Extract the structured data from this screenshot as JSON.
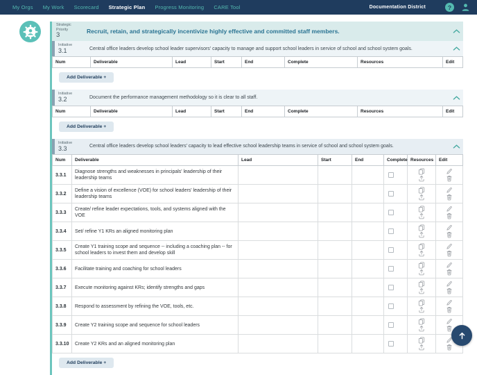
{
  "nav": {
    "items": [
      {
        "label": "My Orgs",
        "active": false
      },
      {
        "label": "My Work",
        "active": false
      },
      {
        "label": "Scorecard",
        "active": false
      },
      {
        "label": "Strategic Plan",
        "active": true
      },
      {
        "label": "Progress Monitoring",
        "active": false
      },
      {
        "label": "CARE Tool",
        "active": false
      }
    ],
    "district": "Documentation District",
    "help_glyph": "?"
  },
  "priority": {
    "label": "Strategic Priority",
    "number": "3",
    "title": "Recruit, retain, and strategically incentivize highly effective and committed staff members."
  },
  "table_columns": [
    "Num",
    "Deliverable",
    "Lead",
    "Start",
    "End",
    "Complete",
    "Resources",
    "Edit"
  ],
  "add_deliverable_label": "Add Deliverable +",
  "initiatives": [
    {
      "label": "Initiative",
      "number": "3.1",
      "description": "Central office leaders develop school leader supervisors' capacity to manage and support school leaders in service of school and school system goals."
    },
    {
      "label": "Initiative",
      "number": "3.2",
      "description": "Document the performance management methodology so it is clear to all staff."
    },
    {
      "label": "Initiative",
      "number": "3.3",
      "description": "Central office leaders develop school leaders' capacity to lead effective school leadership teams in service of school and school system goals."
    }
  ],
  "deliverables_33": [
    {
      "num": "3.3.1",
      "deliverable": "Diagnose strengths and weaknesses in principals' leadership of their leadership teams"
    },
    {
      "num": "3.3.2",
      "deliverable": "Define a vision of excellence (VOE) for school leaders' leadership of their leadership teams"
    },
    {
      "num": "3.3.3",
      "deliverable": "Create/ refine leader expectations, tools, and systems aligned with the VOE"
    },
    {
      "num": "3.3.4",
      "deliverable": "Set/ refine Y1 KRs an aligned monitoring plan"
    },
    {
      "num": "3.3.5",
      "deliverable": "Create Y1 training scope and sequence -- including a coaching plan -- for school leaders to invest them and develop skill"
    },
    {
      "num": "3.3.6",
      "deliverable": "Facilitate training and coaching for school leaders"
    },
    {
      "num": "3.3.7",
      "deliverable": "Execute monitoring against KRs; identify strengths and gaps"
    },
    {
      "num": "3.3.8",
      "deliverable": "Respond to assessment by refining the VOE, tools, etc."
    },
    {
      "num": "3.3.9",
      "deliverable": "Create Y2 training scope and sequence for school leaders"
    },
    {
      "num": "3.3.10",
      "deliverable": "Create Y2 KRs and an aligned monitoring plan"
    }
  ],
  "colors": {
    "nav_bg": "#1f3c5e",
    "accent_teal": "#54bab0",
    "priority_header_bg": "#d9ebeb",
    "priority_title": "#2b7493",
    "initiative_bar": "#8aa2b2",
    "fab_bg": "#27496f"
  }
}
